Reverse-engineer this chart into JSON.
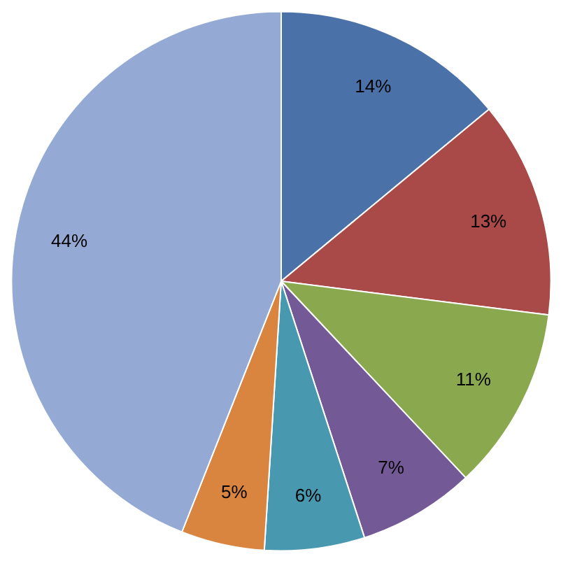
{
  "chart_data": {
    "type": "pie",
    "categories": [
      null,
      null,
      null,
      null,
      null,
      null,
      null
    ],
    "values": [
      14,
      13,
      11,
      7,
      6,
      5,
      44
    ],
    "colors": [
      "#4a72a8",
      "#a94a48",
      "#8aa94f",
      "#735a97",
      "#4899b0",
      "#d9843f",
      "#94a9d3"
    ],
    "value_labels": [
      "14%",
      "13%",
      "11%",
      "7%",
      "6%",
      "5%",
      "44%"
    ]
  }
}
